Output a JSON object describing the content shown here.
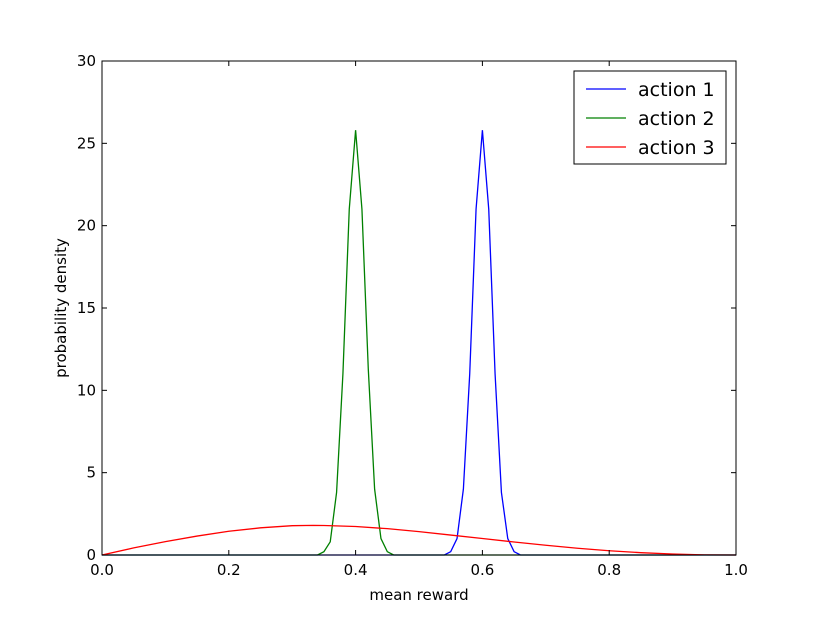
{
  "chart_data": {
    "type": "line",
    "title": "",
    "xlabel": "mean reward",
    "ylabel": "probability density",
    "xlim": [
      0.0,
      1.0
    ],
    "ylim": [
      0,
      30
    ],
    "x_ticks": [
      "0.0",
      "0.2",
      "0.4",
      "0.6",
      "0.8",
      "1.0"
    ],
    "y_ticks": [
      "0",
      "5",
      "10",
      "15",
      "20",
      "25",
      "30"
    ],
    "grid": false,
    "legend_position": "top-right",
    "series": [
      {
        "name": "action 1",
        "color": "#0000ff",
        "x": [
          0.0,
          0.54,
          0.55,
          0.56,
          0.57,
          0.58,
          0.59,
          0.6,
          0.61,
          0.62,
          0.63,
          0.64,
          0.65,
          0.66,
          1.0
        ],
        "y": [
          0,
          0,
          0.2,
          1.0,
          4.0,
          11.0,
          21.0,
          25.8,
          21.0,
          11.0,
          3.8,
          1.0,
          0.2,
          0,
          0
        ]
      },
      {
        "name": "action 2",
        "color": "#008000",
        "x": [
          0.0,
          0.34,
          0.35,
          0.36,
          0.37,
          0.38,
          0.39,
          0.4,
          0.41,
          0.42,
          0.43,
          0.44,
          0.45,
          0.46,
          1.0
        ],
        "y": [
          0,
          0,
          0.2,
          0.8,
          3.8,
          11.0,
          21.0,
          25.8,
          21.0,
          11.3,
          4.0,
          1.0,
          0.2,
          0,
          0
        ]
      },
      {
        "name": "action 3",
        "color": "#ff0000",
        "x": [
          0.0,
          0.05,
          0.1,
          0.15,
          0.2,
          0.25,
          0.3,
          0.333,
          0.35,
          0.4,
          0.45,
          0.5,
          0.55,
          0.6,
          0.65,
          0.7,
          0.75,
          0.8,
          0.85,
          0.9,
          0.95,
          1.0
        ],
        "y": [
          0,
          0.43,
          0.81,
          1.15,
          1.44,
          1.65,
          1.78,
          1.8,
          1.79,
          1.73,
          1.6,
          1.42,
          1.21,
          1.0,
          0.79,
          0.59,
          0.41,
          0.26,
          0.14,
          0.06,
          0.01,
          0
        ]
      }
    ]
  }
}
